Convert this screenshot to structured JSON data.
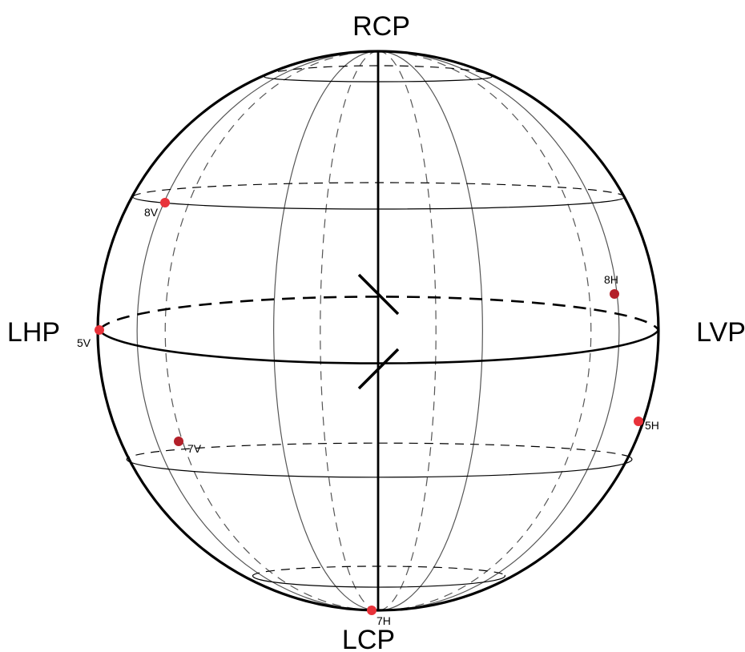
{
  "diagram": {
    "axis_labels": {
      "top": "RCP",
      "bottom": "LCP",
      "left": "LHP",
      "right": "LVP"
    },
    "points": [
      {
        "id": "8V",
        "label": "8V",
        "color": "#e8323a"
      },
      {
        "id": "5V",
        "label": "5V",
        "color": "#e8323a"
      },
      {
        "id": "7V",
        "label": "7V",
        "color": "#b3202a"
      },
      {
        "id": "8H",
        "label": "8H",
        "color": "#b3202a"
      },
      {
        "id": "5H",
        "label": "5H",
        "color": "#e8323a"
      },
      {
        "id": "7H",
        "label": "7H",
        "color": "#e8323a"
      }
    ],
    "colors": {
      "outline": "#000000",
      "grid": "#555555"
    }
  }
}
